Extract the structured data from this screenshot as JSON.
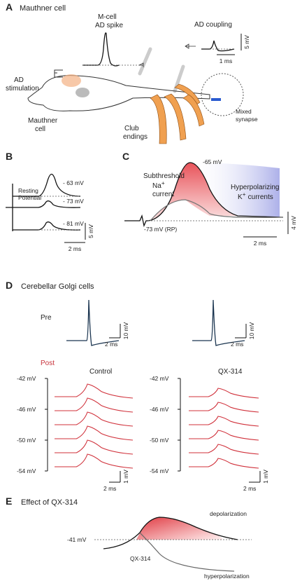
{
  "panel_a": {
    "letter": "A",
    "title": "Mauthner cell",
    "spike_label": [
      "M-cell",
      "AD spike"
    ],
    "coupling_label": "AD coupling",
    "scale_v": "5 mV",
    "scale_t": "1 ms",
    "stimulation_label": [
      "AD",
      "stimulation"
    ],
    "cell_label": [
      "Mauthner",
      "cell"
    ],
    "club_label": [
      "Club",
      "endings"
    ],
    "synapse_label": [
      "Mixed",
      "synapse"
    ]
  },
  "panel_b": {
    "letter": "B",
    "potentials": [
      "- 63 mV",
      "- 73 mV",
      "- 81 mV"
    ],
    "rest_label": [
      "Resting",
      "Potential"
    ],
    "scale_v": "5 mV",
    "scale_t": "2 ms"
  },
  "panel_c": {
    "letter": "C",
    "peak": "-65 mV",
    "na_label": {
      "line1": "Subthreshold",
      "ion": "Na",
      "charge": "+",
      "line2": "current"
    },
    "k_label": {
      "line1": "Hyperpolarizing",
      "ion": "K",
      "charge": "+",
      "line2": "currents"
    },
    "rest": "-73 mV (RP)",
    "scale_v": "4 mV",
    "scale_t": "2 ms"
  },
  "panel_d": {
    "letter": "D",
    "title": "Cerebellar Golgi cells",
    "pre": "Pre",
    "post": "Post",
    "control": "Control",
    "qx": "QX-314",
    "potentials": [
      "-42 mV",
      "-46 mV",
      "-50 mV",
      "-54 mV"
    ],
    "pre_scale_t": "2 ms",
    "pre_scale_v": "10 mV",
    "post_scale_t": "2 ms",
    "post_scale_v": "1 mV"
  },
  "panel_e": {
    "letter": "E",
    "title": "Effect of QX-314",
    "depol": "depolarization",
    "rest": "-41 mV",
    "qx": "QX-314",
    "hyperpol": "hyperpolarization"
  }
}
